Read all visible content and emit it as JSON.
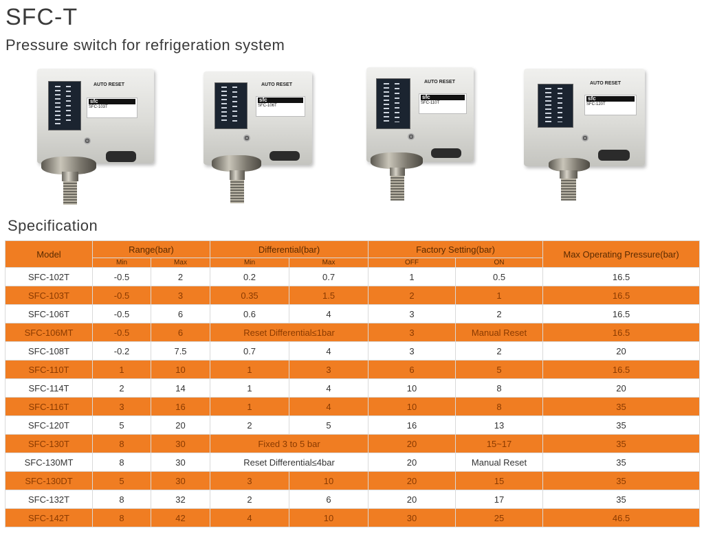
{
  "page": {
    "title": "SFC-T",
    "subtitle": "Pressure switch for refrigeration system",
    "spec_heading": "Specification"
  },
  "products": [
    {
      "reset_text": "AUTO RESET",
      "brand": "sfc",
      "model_label": "SFC-103T"
    },
    {
      "reset_text": "AUTO RESET",
      "brand": "sfc",
      "model_label": "SFC-106T"
    },
    {
      "reset_text": "AUTO RESET",
      "brand": "sfc",
      "model_label": "SFC-110T"
    },
    {
      "reset_text": "AUTO RESET",
      "brand": "sfc",
      "model_label": "SFC-120T"
    }
  ],
  "table": {
    "headers": {
      "model": "Model",
      "range": "Range(bar)",
      "differential": "Differential(bar)",
      "factory": "Factory Setting(bar)",
      "max_pressure": "Max Operating Pressure(bar)",
      "min": "Min",
      "max": "Max",
      "off": "OFF",
      "on": "ON"
    },
    "rows": [
      {
        "model": "SFC-102T",
        "range_min": "-0.5",
        "range_max": "2",
        "diff_min": "0.2",
        "diff_max": "0.7",
        "off": "1",
        "on": "0.5",
        "max_pressure": "16.5"
      },
      {
        "model": "SFC-103T",
        "range_min": "-0.5",
        "range_max": "3",
        "diff_min": "0.35",
        "diff_max": "1.5",
        "off": "2",
        "on": "1",
        "max_pressure": "16.5"
      },
      {
        "model": "SFC-106T",
        "range_min": "-0.5",
        "range_max": "6",
        "diff_min": "0.6",
        "diff_max": "4",
        "off": "3",
        "on": "2",
        "max_pressure": "16.5"
      },
      {
        "model": "SFC-106MT",
        "range_min": "-0.5",
        "range_max": "6",
        "diff_span": "Reset Differential≤1bar",
        "off": "3",
        "on": "Manual Reset",
        "max_pressure": "16.5"
      },
      {
        "model": "SFC-108T",
        "range_min": "-0.2",
        "range_max": "7.5",
        "diff_min": "0.7",
        "diff_max": "4",
        "off": "3",
        "on": "2",
        "max_pressure": "20"
      },
      {
        "model": "SFC-110T",
        "range_min": "1",
        "range_max": "10",
        "diff_min": "1",
        "diff_max": "3",
        "off": "6",
        "on": "5",
        "max_pressure": "16.5"
      },
      {
        "model": "SFC-114T",
        "range_min": "2",
        "range_max": "14",
        "diff_min": "1",
        "diff_max": "4",
        "off": "10",
        "on": "8",
        "max_pressure": "20"
      },
      {
        "model": "SFC-116T",
        "range_min": "3",
        "range_max": "16",
        "diff_min": "1",
        "diff_max": "4",
        "off": "10",
        "on": "8",
        "max_pressure": "35"
      },
      {
        "model": "SFC-120T",
        "range_min": "5",
        "range_max": "20",
        "diff_min": "2",
        "diff_max": "5",
        "off": "16",
        "on": "13",
        "max_pressure": "35"
      },
      {
        "model": "SFC-130T",
        "range_min": "8",
        "range_max": "30",
        "diff_span": "Fixed 3 to 5 bar",
        "off": "20",
        "on": "15~17",
        "max_pressure": "35"
      },
      {
        "model": "SFC-130MT",
        "range_min": "8",
        "range_max": "30",
        "diff_span": "Reset Differential≤4bar",
        "off": "20",
        "on": "Manual Reset",
        "max_pressure": "35"
      },
      {
        "model": "SFC-130DT",
        "range_min": "5",
        "range_max": "30",
        "diff_min": "3",
        "diff_max": "10",
        "off": "20",
        "on": "15",
        "max_pressure": "35"
      },
      {
        "model": "SFC-132T",
        "range_min": "8",
        "range_max": "32",
        "diff_min": "2",
        "diff_max": "6",
        "off": "20",
        "on": "17",
        "max_pressure": "35"
      },
      {
        "model": "SFC-142T",
        "range_min": "8",
        "range_max": "42",
        "diff_min": "4",
        "diff_max": "10",
        "off": "30",
        "on": "25",
        "max_pressure": "46.5"
      }
    ]
  }
}
